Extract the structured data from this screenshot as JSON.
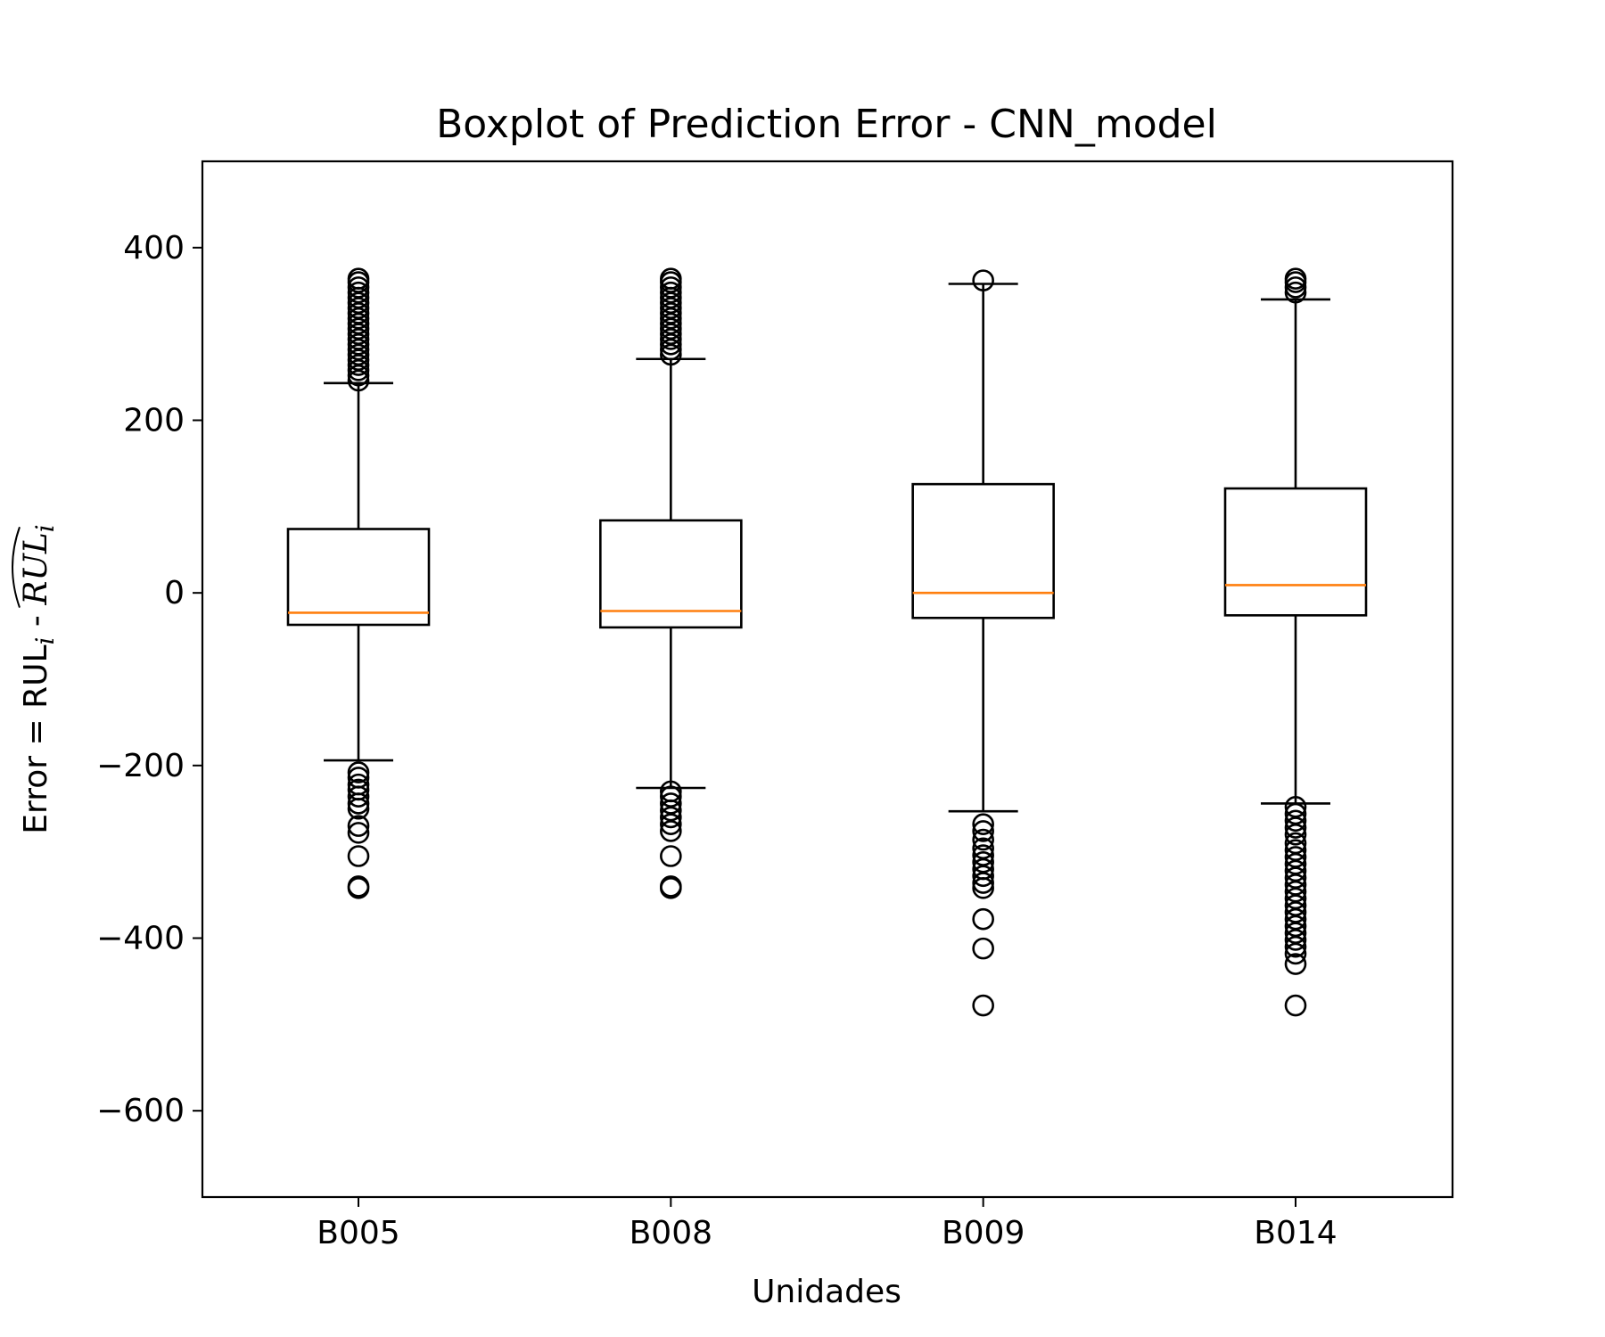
{
  "chart_data": {
    "type": "boxplot",
    "title": "Boxplot of Prediction Error - CNN_model",
    "xlabel": "Unidades",
    "ylabel": {
      "prefix": "Error = RUL",
      "sub1": "i",
      "middle": " - ",
      "hat_text": "RUL",
      "sub2": "i"
    },
    "ylim": [
      -700,
      500
    ],
    "yticks": [
      400,
      200,
      0,
      -200,
      -400,
      -600
    ],
    "grid": false,
    "colors": {
      "box": "#000000",
      "median": "#ff7f0e",
      "outlier": "#000000"
    },
    "categories": [
      "B005",
      "B008",
      "B009",
      "B014"
    ],
    "boxes": [
      {
        "name": "B005",
        "q1": -37,
        "median": -23,
        "q3": 74,
        "whisker_low": -194,
        "whisker_high": 243,
        "outliers": [
          246,
          252,
          258,
          264,
          270,
          276,
          282,
          288,
          294,
          300,
          306,
          312,
          318,
          324,
          330,
          336,
          342,
          348,
          354,
          360,
          364,
          -208,
          -214,
          -222,
          -228,
          -236,
          -244,
          -250,
          -270,
          -278,
          -305,
          -340,
          -342
        ]
      },
      {
        "name": "B008",
        "q1": -40,
        "median": -21,
        "q3": 84,
        "whisker_low": -226,
        "whisker_high": 271,
        "outliers": [
          276,
          282,
          288,
          294,
          300,
          306,
          312,
          318,
          324,
          330,
          336,
          342,
          348,
          354,
          360,
          364,
          -230,
          -236,
          -244,
          -252,
          -260,
          -268,
          -276,
          -305,
          -340,
          -342
        ]
      },
      {
        "name": "B009",
        "q1": -29,
        "median": 0,
        "q3": 126,
        "whisker_low": -253,
        "whisker_high": 358,
        "outliers": [
          362,
          -268,
          -276,
          -286,
          -296,
          -304,
          -312,
          -320,
          -328,
          -336,
          -342,
          -378,
          -412,
          -478
        ]
      },
      {
        "name": "B014",
        "q1": -26,
        "median": 9,
        "q3": 121,
        "whisker_low": -244,
        "whisker_high": 340,
        "outliers": [
          348,
          354,
          360,
          364,
          -248,
          -256,
          -264,
          -272,
          -280,
          -290,
          -298,
          -306,
          -314,
          -322,
          -330,
          -338,
          -346,
          -354,
          -362,
          -370,
          -378,
          -386,
          -394,
          -402,
          -410,
          -418,
          -430,
          -478
        ]
      }
    ]
  }
}
